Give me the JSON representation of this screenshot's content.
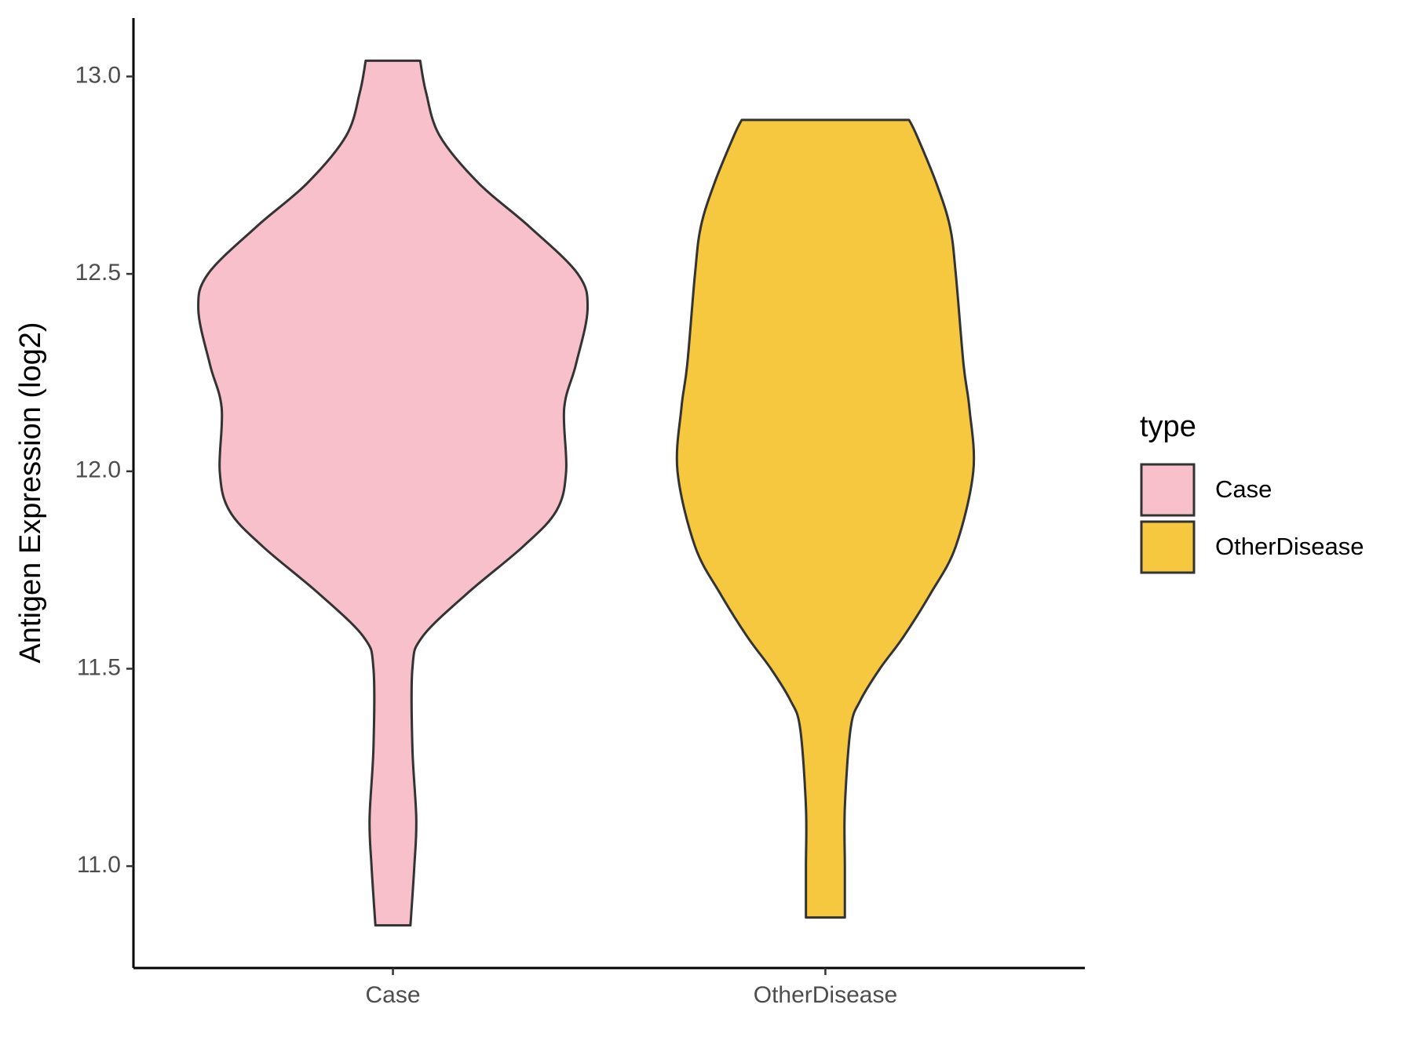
{
  "chart_data": {
    "type": "violin",
    "y_label": "Antigen Expression (log2)",
    "categories": [
      "Case",
      "OtherDisease"
    ],
    "ylim": [
      10.742,
      13.148
    ],
    "yticks": [
      {
        "value": 11,
        "label": "11.0"
      },
      11.5,
      {
        "value": 12,
        "label": "12.0"
      },
      12.5,
      {
        "value": 13,
        "label": "13.0"
      }
    ],
    "legend_title": "type",
    "legend_position": "right",
    "series": [
      {
        "name": "Case",
        "color": "#f7c0cb",
        "y": [
          10.85,
          11.0,
          11.12,
          11.3,
          11.5,
          11.58,
          11.69,
          11.81,
          11.9,
          12.0,
          12.16,
          12.27,
          12.41,
          12.5,
          12.62,
          12.73,
          12.85,
          12.96,
          13.04
        ],
        "width": [
          0.09,
          0.11,
          0.12,
          0.1,
          0.1,
          0.15,
          0.38,
          0.67,
          0.84,
          0.89,
          0.88,
          0.94,
          1.0,
          0.95,
          0.7,
          0.44,
          0.24,
          0.17,
          0.14
        ]
      },
      {
        "name": "OtherDisease",
        "color": "#f5c840",
        "y": [
          10.87,
          11.0,
          11.15,
          11.35,
          11.42,
          11.5,
          11.58,
          11.69,
          11.81,
          12.0,
          12.16,
          12.27,
          12.5,
          12.62,
          12.73,
          12.85,
          12.89
        ],
        "width": [
          0.1,
          0.1,
          0.1,
          0.13,
          0.18,
          0.28,
          0.4,
          0.54,
          0.67,
          0.76,
          0.74,
          0.71,
          0.67,
          0.64,
          0.57,
          0.47,
          0.43
        ]
      }
    ]
  }
}
